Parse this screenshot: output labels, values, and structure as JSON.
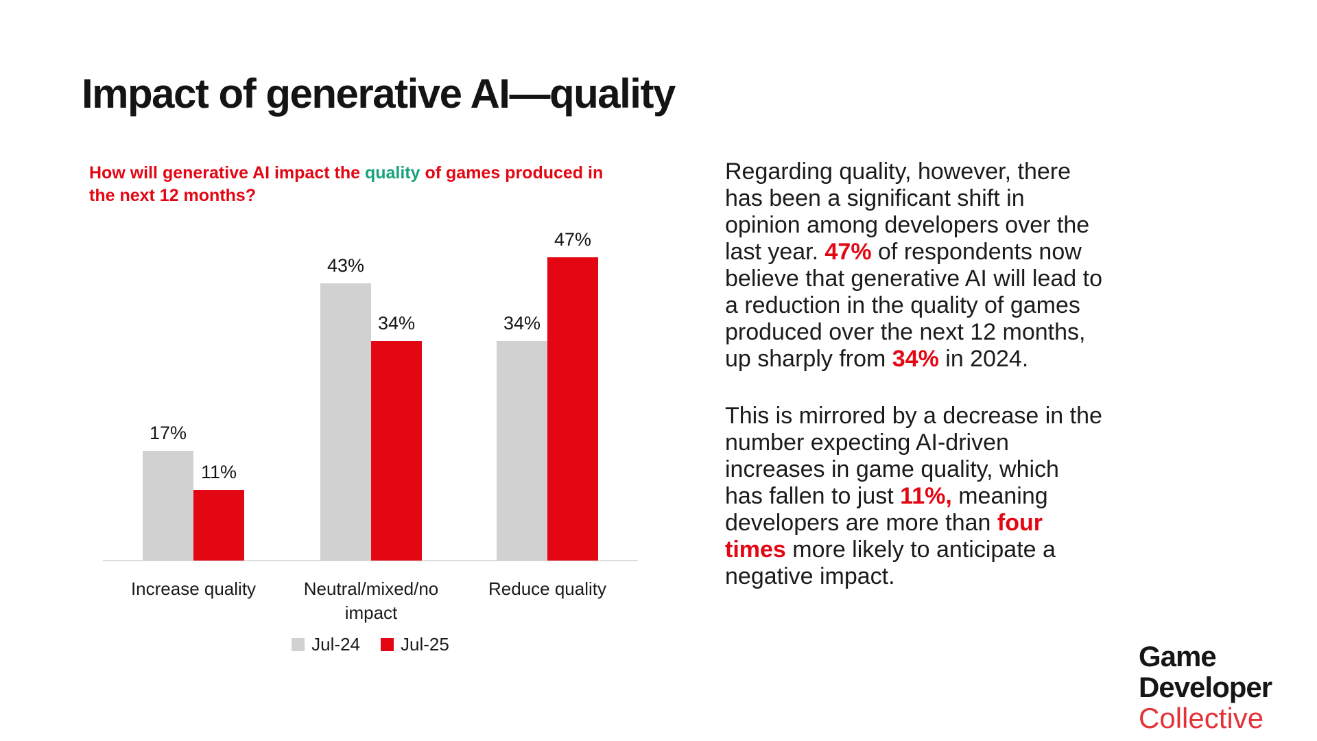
{
  "title": "Impact of generative AI—quality",
  "colors": {
    "accent_red": "#e30613",
    "accent_green": "#17a47b",
    "bar_gray": "#d1d1d1",
    "axis_line": "#dcdcdc",
    "logo_red": "#e2333a",
    "text_dark": "#1b1b1b"
  },
  "chart": {
    "question_lines": [
      [
        {
          "text": "How will generative AI impact the ",
          "style": "red"
        },
        {
          "text": "quality",
          "style": "green"
        },
        {
          "text": " of games produced in",
          "style": "red"
        }
      ],
      [
        {
          "text": "the next 12 months?",
          "style": "red"
        }
      ]
    ]
  },
  "chart_data": {
    "type": "bar",
    "title": "How will generative AI impact the quality of games produced in the next 12 months?",
    "categories": [
      "Increase quality",
      "Neutral/mixed/no impact",
      "Reduce quality"
    ],
    "series": [
      {
        "name": "Jul-24",
        "color": "#d1d1d1",
        "values": [
          17,
          43,
          34
        ]
      },
      {
        "name": "Jul-25",
        "color": "#e30613",
        "values": [
          11,
          34,
          47
        ]
      }
    ],
    "value_suffix": "%",
    "ylim": [
      0,
      52
    ],
    "grid": false,
    "legend_position": "bottom",
    "value_labels_shown": true
  },
  "paragraphs": [
    {
      "lines": [
        [
          {
            "text": "Regarding quality, however, there"
          }
        ],
        [
          {
            "text": "has been a significant shift in"
          }
        ],
        [
          {
            "text": "opinion among developers over the"
          }
        ],
        [
          {
            "text": "last year. "
          },
          {
            "text": "47%",
            "style": "em"
          },
          {
            "text": " of respondents now"
          }
        ],
        [
          {
            "text": "believe that generative AI will lead to"
          }
        ],
        [
          {
            "text": "a reduction in the quality of games"
          }
        ],
        [
          {
            "text": "produced over the next 12 months,"
          }
        ],
        [
          {
            "text": "up sharply from "
          },
          {
            "text": "34%",
            "style": "em"
          },
          {
            "text": " in 2024."
          }
        ]
      ]
    },
    {
      "lines": [
        [
          {
            "text": "This is mirrored by a decrease in the"
          }
        ],
        [
          {
            "text": "number expecting AI-driven"
          }
        ],
        [
          {
            "text": "increases in game quality, which"
          }
        ],
        [
          {
            "text": "has fallen to just "
          },
          {
            "text": "11%,",
            "style": "em"
          },
          {
            "text": " meaning"
          }
        ],
        [
          {
            "text": "developers are more than "
          },
          {
            "text": "four",
            "style": "em"
          }
        ],
        [
          {
            "text": "times",
            "style": "em"
          },
          {
            "text": " more likely to anticipate a"
          }
        ],
        [
          {
            "text": "negative impact."
          }
        ]
      ]
    }
  ],
  "logo": {
    "line1": "Game",
    "line2": "Developer",
    "line3": "Collective"
  }
}
